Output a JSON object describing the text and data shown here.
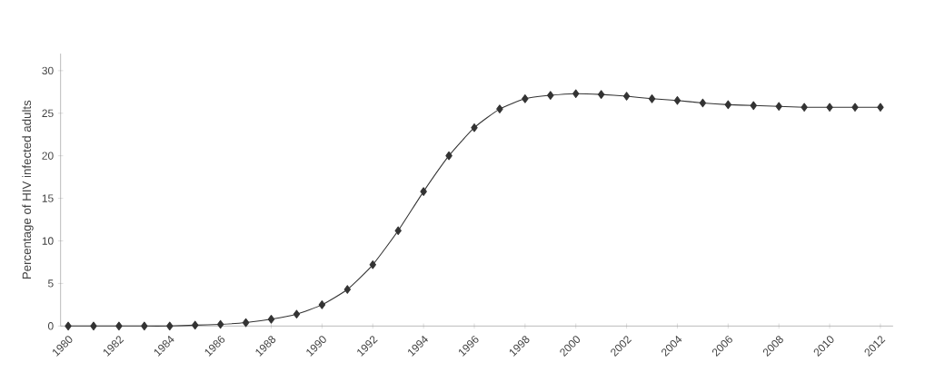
{
  "chart_data": {
    "type": "line",
    "ylabel": "Percentage of HIV infected adults",
    "x": [
      1980,
      1981,
      1982,
      1983,
      1984,
      1985,
      1986,
      1987,
      1988,
      1989,
      1990,
      1991,
      1992,
      1993,
      1994,
      1995,
      1996,
      1997,
      1998,
      1999,
      2000,
      2001,
      2002,
      2003,
      2004,
      2005,
      2006,
      2007,
      2008,
      2009,
      2010,
      2011,
      2012
    ],
    "series": [
      {
        "color": "#333333",
        "values": [
          0,
          0,
          0,
          0,
          0,
          0.1,
          0.2,
          0.4,
          0.8,
          1.4,
          2.5,
          4.3,
          7.2,
          11.2,
          15.8,
          20.0,
          23.3,
          25.5,
          26.7,
          27.1,
          27.3,
          27.2,
          27.0,
          26.7,
          26.5,
          26.2,
          26.0,
          25.9,
          25.8,
          25.7,
          25.7,
          25.7,
          25.7
        ]
      }
    ],
    "xlim": [
      1979.7,
      2012.5
    ],
    "ylim": [
      0,
      32
    ],
    "xticks": [
      1980,
      1982,
      1984,
      1986,
      1988,
      1990,
      1992,
      1994,
      1996,
      1998,
      2000,
      2002,
      2004,
      2006,
      2008,
      2010,
      2012
    ],
    "yticks": [
      0,
      5,
      10,
      15,
      20,
      25,
      30
    ],
    "grid": false,
    "legend": false,
    "marker": "diamond",
    "line_style": "solid"
  }
}
